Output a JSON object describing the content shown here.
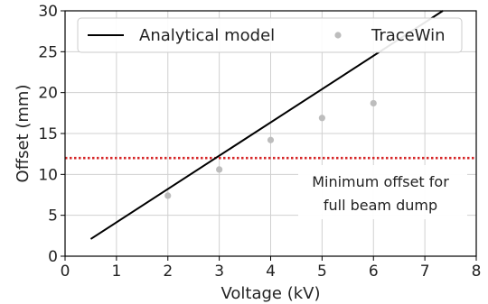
{
  "chart_data": {
    "type": "line",
    "xlabel": "Voltage (kV)",
    "ylabel": "Offset (mm)",
    "xlim": [
      0,
      8
    ],
    "ylim": [
      0,
      30
    ],
    "xticks": [
      0,
      1,
      2,
      3,
      4,
      5,
      6,
      7,
      8
    ],
    "yticks": [
      0,
      5,
      10,
      15,
      20,
      25,
      30
    ],
    "grid": true,
    "legend_position": "top",
    "series": [
      {
        "name": "Analytical model",
        "kind": "line",
        "color": "#000000",
        "x": [
          0.5,
          7.35
        ],
        "y": [
          2.1,
          30
        ]
      },
      {
        "name": "TraceWin",
        "kind": "scatter",
        "color": "#bdbdbd",
        "x": [
          2,
          3,
          4,
          5,
          6
        ],
        "y": [
          7.4,
          10.6,
          14.2,
          16.9,
          18.7
        ]
      }
    ],
    "threshold": {
      "y": 12.0,
      "color": "#d62728",
      "style": "dotted"
    },
    "annotation": {
      "lines": [
        "Minimum offset for",
        "full beam dump"
      ]
    }
  }
}
